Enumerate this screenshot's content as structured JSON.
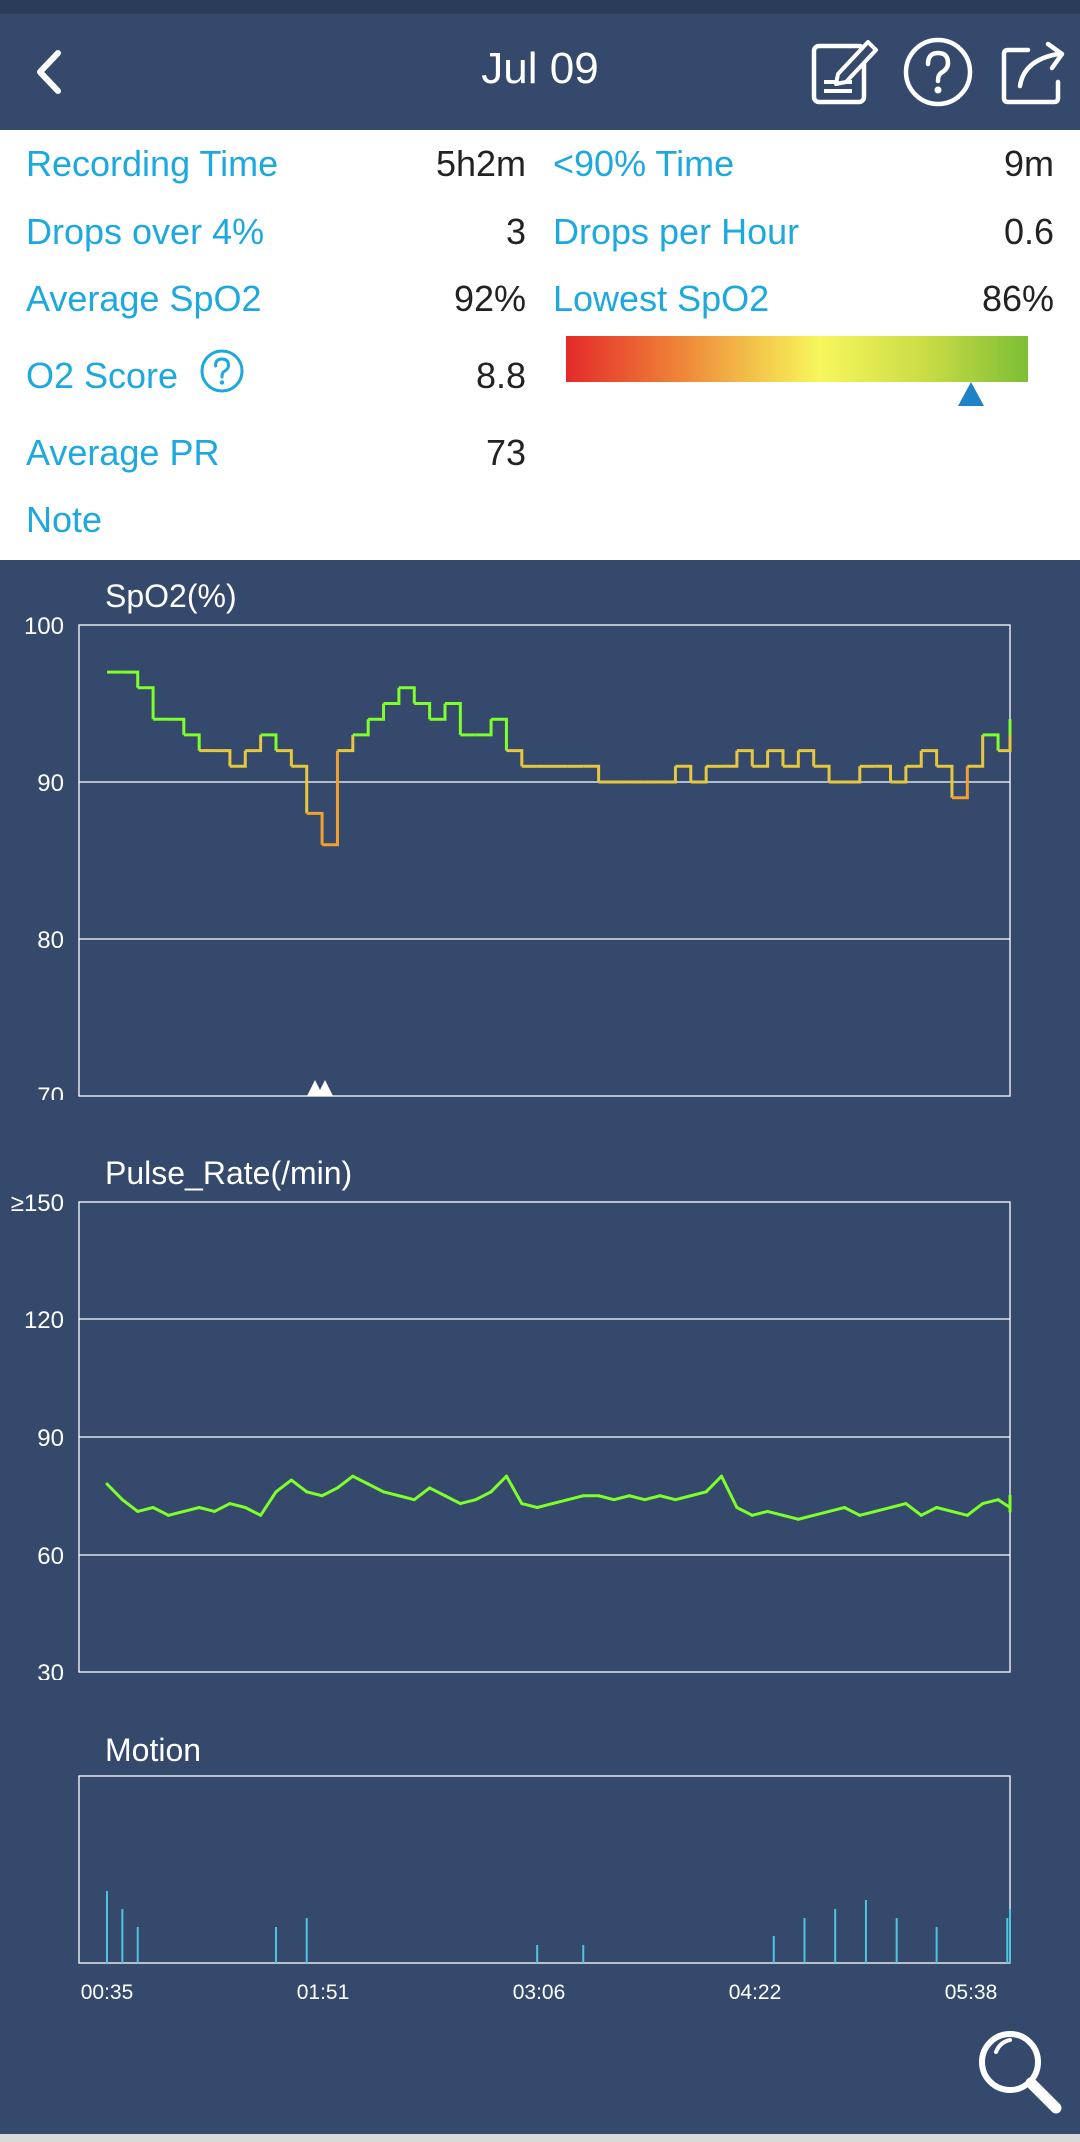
{
  "header": {
    "title": "Jul 09",
    "icons": [
      "back-arrow-icon",
      "edit-note-icon",
      "help-icon",
      "share-icon"
    ]
  },
  "summary": {
    "recording_time": {
      "label": "Recording Time",
      "value": "5h2m"
    },
    "below_90_time": {
      "label": "<90% Time",
      "value": "9m"
    },
    "drops_over_4": {
      "label": "Drops over 4%",
      "value": "3"
    },
    "drops_per_hour": {
      "label": "Drops per Hour",
      "value": "0.6"
    },
    "average_spo2": {
      "label": "Average SpO2",
      "value": "92%"
    },
    "lowest_spo2": {
      "label": "Lowest SpO2",
      "value": "86%"
    },
    "o2_score": {
      "label": "O2 Score",
      "value": "8.8",
      "gauge_level": 0.88
    },
    "average_pr": {
      "label": "Average PR",
      "value": "73"
    },
    "note": {
      "label": "Note"
    }
  },
  "colors": {
    "background": "#34496b",
    "accent": "#1da8e0",
    "spo2_high": "#7fff2a",
    "spo2_mid": "#e6c83c",
    "spo2_low": "#f0a030",
    "pulse": "#7fff2a",
    "motion": "#4fc3e0"
  },
  "chart_data": [
    {
      "type": "line",
      "title": "SpO2(%)",
      "ylim": [
        70,
        100
      ],
      "y_ticks": [
        "100",
        "90",
        "80",
        "70"
      ],
      "x_ticks": [
        "00:35",
        "01:51",
        "03:06",
        "04:22",
        "05:38"
      ],
      "grid": true,
      "series": [
        {
          "x": [
            "00:35",
            "00:40",
            "00:45",
            "00:50",
            "00:55",
            "01:00",
            "01:05",
            "01:10",
            "01:15",
            "01:20",
            "01:25",
            "01:30",
            "01:35",
            "01:40",
            "01:45",
            "01:50",
            "01:55",
            "02:00",
            "02:05",
            "02:10",
            "02:15",
            "02:20",
            "02:25",
            "02:30",
            "02:35",
            "02:40",
            "02:45",
            "02:50",
            "02:55",
            "03:00",
            "03:05",
            "03:10",
            "03:15",
            "03:20",
            "03:25",
            "03:30",
            "03:35",
            "03:40",
            "03:45",
            "03:50",
            "03:55",
            "04:00",
            "04:05",
            "04:10",
            "04:15",
            "04:20",
            "04:25",
            "04:30",
            "04:35",
            "04:40",
            "04:45",
            "04:50",
            "04:55",
            "05:00",
            "05:05",
            "05:10",
            "05:15",
            "05:20",
            "05:25",
            "05:30",
            "05:35",
            "05:40"
          ],
          "values": [
            97,
            97,
            96,
            94,
            94,
            93,
            92,
            92,
            91,
            92,
            93,
            92,
            91,
            88,
            86,
            92,
            93,
            94,
            95,
            96,
            95,
            94,
            95,
            93,
            93,
            94,
            92,
            91,
            91,
            91,
            91,
            91,
            90,
            90,
            90,
            90,
            90,
            91,
            90,
            91,
            91,
            92,
            91,
            92,
            91,
            92,
            91,
            90,
            90,
            91,
            91,
            90,
            91,
            92,
            91,
            89,
            91,
            93,
            92,
            93,
            93,
            94
          ]
        }
      ],
      "markers": [
        "drop-marker",
        "drop-marker"
      ]
    },
    {
      "type": "line",
      "title": "Pulse_Rate(/min)",
      "ylim": [
        30,
        150
      ],
      "y_ticks": [
        "≥150",
        "120",
        "90",
        "60",
        "30"
      ],
      "grid": true,
      "series": [
        {
          "x": [
            "00:35",
            "00:40",
            "00:45",
            "00:50",
            "00:55",
            "01:00",
            "01:05",
            "01:10",
            "01:15",
            "01:20",
            "01:25",
            "01:30",
            "01:35",
            "01:40",
            "01:45",
            "01:50",
            "01:55",
            "02:00",
            "02:05",
            "02:10",
            "02:15",
            "02:20",
            "02:25",
            "02:30",
            "02:35",
            "02:40",
            "02:45",
            "02:50",
            "02:55",
            "03:00",
            "03:05",
            "03:10",
            "03:15",
            "03:20",
            "03:25",
            "03:30",
            "03:35",
            "03:40",
            "03:45",
            "03:50",
            "03:55",
            "04:00",
            "04:05",
            "04:10",
            "04:15",
            "04:20",
            "04:25",
            "04:30",
            "04:35",
            "04:40",
            "04:45",
            "04:50",
            "04:55",
            "05:00",
            "05:05",
            "05:10",
            "05:15",
            "05:20",
            "05:25",
            "05:30",
            "05:35",
            "05:40"
          ],
          "values": [
            78,
            74,
            71,
            72,
            70,
            71,
            72,
            71,
            73,
            72,
            70,
            76,
            79,
            76,
            75,
            77,
            80,
            78,
            76,
            75,
            74,
            77,
            75,
            73,
            74,
            76,
            80,
            73,
            72,
            73,
            74,
            75,
            75,
            74,
            75,
            74,
            75,
            74,
            75,
            76,
            80,
            72,
            70,
            71,
            70,
            69,
            70,
            71,
            72,
            70,
            71,
            72,
            73,
            70,
            72,
            71,
            70,
            73,
            74,
            72,
            71,
            75
          ]
        }
      ]
    },
    {
      "type": "bar",
      "title": "Motion",
      "x_ticks": [
        "00:35",
        "01:51",
        "03:06",
        "04:22",
        "05:38"
      ],
      "grid": false,
      "series": [
        {
          "x": [
            "00:35",
            "00:40",
            "00:45",
            "01:30",
            "01:40",
            "02:55",
            "03:10",
            "04:12",
            "04:22",
            "04:32",
            "04:42",
            "04:52",
            "05:05",
            "05:28",
            "05:33",
            "05:38"
          ],
          "values": [
            8,
            6,
            4,
            4,
            5,
            2,
            2,
            3,
            5,
            6,
            7,
            5,
            4,
            5,
            6,
            4
          ]
        }
      ]
    }
  ]
}
